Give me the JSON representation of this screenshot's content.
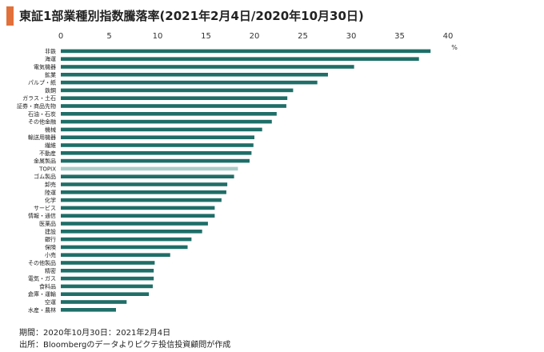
{
  "header": {
    "title": "東証1部業種別指数騰落率(2021年2月4日/2020年10月30日)"
  },
  "footer": {
    "period": "期間：2020年10月30日：2021年2月4日",
    "source": "出所：Bloombergのデータよりピクテ投信投資顧問が作成"
  },
  "colors": {
    "bar": "#1f6e68",
    "highlight": "#a8cdc9",
    "accent": "#e2703a"
  },
  "chart_data": {
    "type": "bar",
    "orientation": "horizontal",
    "title": "東証1部業種別指数騰落率(2021年2月4日/2020年10月30日)",
    "unit": "%",
    "xlim": [
      0,
      40
    ],
    "xticks": [
      0,
      5,
      10,
      15,
      20,
      25,
      30,
      35,
      40
    ],
    "grid": false,
    "highlight_category": "TOPIX",
    "categories": [
      "非鉄",
      "海運",
      "電気機器",
      "鉱業",
      "パルプ・紙",
      "鉄鋼",
      "ガラス・土石",
      "証券・商品先物",
      "石油・石炭",
      "その他金融",
      "機械",
      "輸送用機器",
      "繊維",
      "不動産",
      "金属製品",
      "TOPIX",
      "ゴム製品",
      "卸売",
      "陸運",
      "化学",
      "サービス",
      "情報・通信",
      "医薬品",
      "建設",
      "銀行",
      "保険",
      "小売",
      "その他製品",
      "精密",
      "電気・ガス",
      "食料品",
      "倉庫・運輸",
      "空運",
      "水産・農林"
    ],
    "values": [
      38.2,
      37.0,
      30.3,
      27.6,
      26.5,
      24.0,
      23.4,
      23.3,
      22.3,
      21.8,
      20.8,
      20.0,
      19.9,
      19.7,
      19.5,
      18.3,
      17.9,
      17.2,
      17.1,
      16.6,
      15.9,
      15.9,
      15.2,
      14.6,
      13.5,
      13.1,
      11.3,
      9.7,
      9.6,
      9.6,
      9.5,
      9.1,
      6.8,
      5.7
    ]
  }
}
